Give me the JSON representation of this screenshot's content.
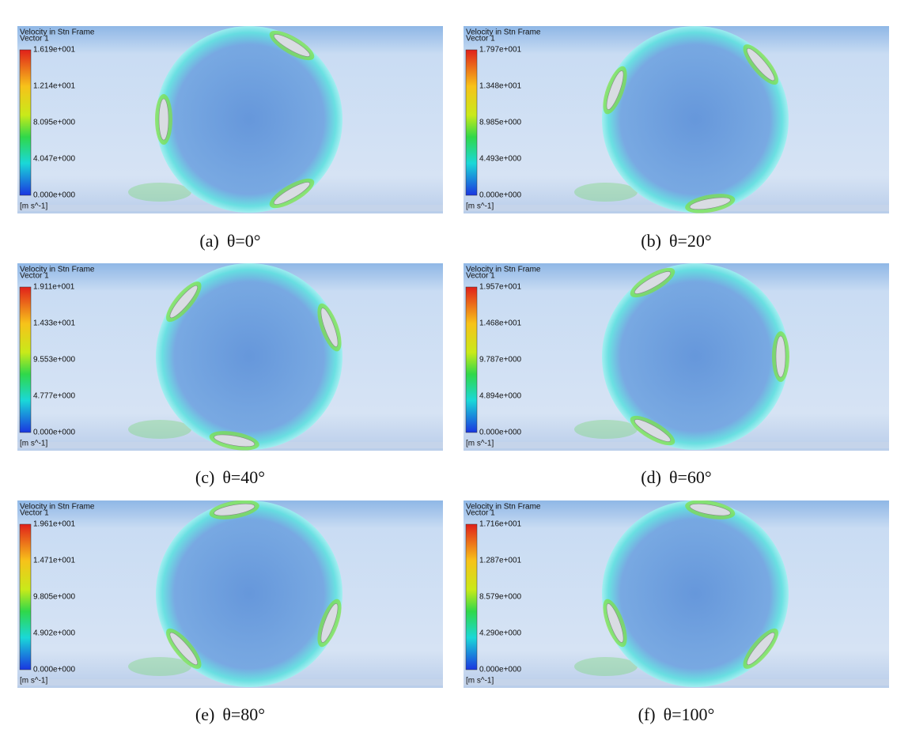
{
  "panels": [
    {
      "title": "Velocity in Stn Frame",
      "subtitle": "Vector 1",
      "legend_labels": [
        "1.619e+001",
        "1.214e+001",
        "8.095e+000",
        "4.047e+000",
        "0.000e+000"
      ],
      "unit": "[m s^-1]",
      "caption_label": "(a)",
      "caption_angle": "θ=0°"
    },
    {
      "title": "Velocity in Stn Frame",
      "subtitle": "Vector 1",
      "legend_labels": [
        "1.797e+001",
        "1.348e+001",
        "8.985e+000",
        "4.493e+000",
        "0.000e+000"
      ],
      "unit": "[m s^-1]",
      "caption_label": "(b)",
      "caption_angle": "θ=20°"
    },
    {
      "title": "Velocity in Stn Frame",
      "subtitle": "Vector 1",
      "legend_labels": [
        "1.911e+001",
        "1.433e+001",
        "9.553e+000",
        "4.777e+000",
        "0.000e+000"
      ],
      "unit": "[m s^-1]",
      "caption_label": "(c)",
      "caption_angle": "θ=40°"
    },
    {
      "title": "Velocity in Stn Frame",
      "subtitle": "Vector 1",
      "legend_labels": [
        "1.957e+001",
        "1.468e+001",
        "9.787e+000",
        "4.894e+000",
        "0.000e+000"
      ],
      "unit": "[m s^-1]",
      "caption_label": "(d)",
      "caption_angle": "θ=60°"
    },
    {
      "title": "Velocity in Stn Frame",
      "subtitle": "Vector 1",
      "legend_labels": [
        "1.961e+001",
        "1.471e+001",
        "9.805e+000",
        "4.902e+000",
        "0.000e+000"
      ],
      "unit": "[m s^-1]",
      "caption_label": "(e)",
      "caption_angle": "θ=80°"
    },
    {
      "title": "Velocity in Stn Frame",
      "subtitle": "Vector 1",
      "legend_labels": [
        "1.716e+001",
        "1.287e+001",
        "8.579e+000",
        "4.290e+000",
        "0.000e+000"
      ],
      "unit": "[m s^-1]",
      "caption_label": "(f)",
      "caption_angle": "θ=100°"
    }
  ]
}
